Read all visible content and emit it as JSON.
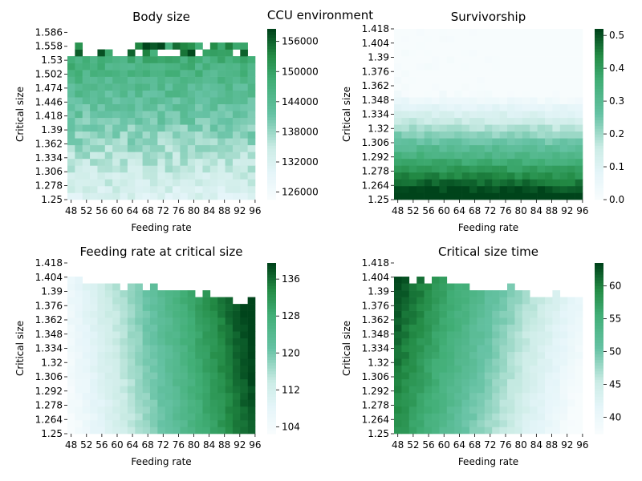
{
  "figure_title": "CCU environment",
  "colors": {
    "low": "#f7fcfd",
    "mid": "#66c2a4",
    "high": "#00441b"
  },
  "chart_data": [
    {
      "type": "heatmap",
      "title": "Body size",
      "xlabel": "Feeding rate",
      "ylabel": "Critical size",
      "x_ticks": [
        "48",
        "52",
        "56",
        "60",
        "64",
        "68",
        "72",
        "76",
        "80",
        "84",
        "88",
        "92",
        "96"
      ],
      "y_ticks": [
        "1.25",
        "1.278",
        "1.306",
        "1.334",
        "1.362",
        "1.39",
        "1.418",
        "1.446",
        "1.474",
        "1.502",
        "1.53",
        "1.558",
        "1.586"
      ],
      "colorbar_ticks": [
        "126000",
        "132000",
        "138000",
        "144000",
        "150000",
        "156000"
      ],
      "colorbar_range": [
        124500,
        158500
      ],
      "x_range": [
        48,
        97
      ],
      "y_range": [
        1.25,
        1.593
      ],
      "pattern": "body"
    },
    {
      "type": "heatmap",
      "title": "Survivorship",
      "xlabel": "Feeding rate",
      "ylabel": "Critical size",
      "x_ticks": [
        "48",
        "52",
        "56",
        "60",
        "64",
        "68",
        "72",
        "76",
        "80",
        "84",
        "88",
        "92",
        "96"
      ],
      "y_ticks": [
        "1.25",
        "1.264",
        "1.278",
        "1.292",
        "1.306",
        "1.32",
        "1.334",
        "1.348",
        "1.362",
        "1.376",
        "1.39",
        "1.404",
        "1.418"
      ],
      "colorbar_ticks": [
        "0.0",
        "0.1",
        "0.2",
        "0.3",
        "0.4",
        "0.5"
      ],
      "colorbar_range": [
        0,
        0.52
      ],
      "x_range": [
        48,
        97
      ],
      "y_range": [
        1.25,
        1.418
      ],
      "pattern": "surv"
    },
    {
      "type": "heatmap",
      "title": "Feeding rate at critical size",
      "xlabel": "Feeding rate",
      "ylabel": "Critical size",
      "x_ticks": [
        "48",
        "52",
        "56",
        "60",
        "64",
        "68",
        "72",
        "76",
        "80",
        "84",
        "88",
        "92",
        "96"
      ],
      "y_ticks": [
        "1.25",
        "1.264",
        "1.278",
        "1.292",
        "1.306",
        "1.32",
        "1.334",
        "1.348",
        "1.362",
        "1.376",
        "1.39",
        "1.404",
        "1.418"
      ],
      "colorbar_ticks": [
        "104",
        "112",
        "120",
        "128",
        "136"
      ],
      "colorbar_range": [
        102.5,
        139.5
      ],
      "x_range": [
        48,
        97
      ],
      "y_range": [
        1.25,
        1.418
      ],
      "pattern": "feed"
    },
    {
      "type": "heatmap",
      "title": "Critical size time",
      "xlabel": "Feeding rate",
      "ylabel": "Critical size",
      "x_ticks": [
        "48",
        "52",
        "56",
        "60",
        "64",
        "68",
        "72",
        "76",
        "80",
        "84",
        "88",
        "92",
        "96"
      ],
      "y_ticks": [
        "1.25",
        "1.264",
        "1.278",
        "1.292",
        "1.306",
        "1.32",
        "1.334",
        "1.348",
        "1.362",
        "1.376",
        "1.39",
        "1.404",
        "1.418"
      ],
      "colorbar_ticks": [
        "40",
        "45",
        "50",
        "55",
        "60"
      ],
      "colorbar_range": [
        37.5,
        63.5
      ],
      "x_range": [
        48,
        97
      ],
      "y_range": [
        1.25,
        1.418
      ],
      "pattern": "time"
    }
  ]
}
